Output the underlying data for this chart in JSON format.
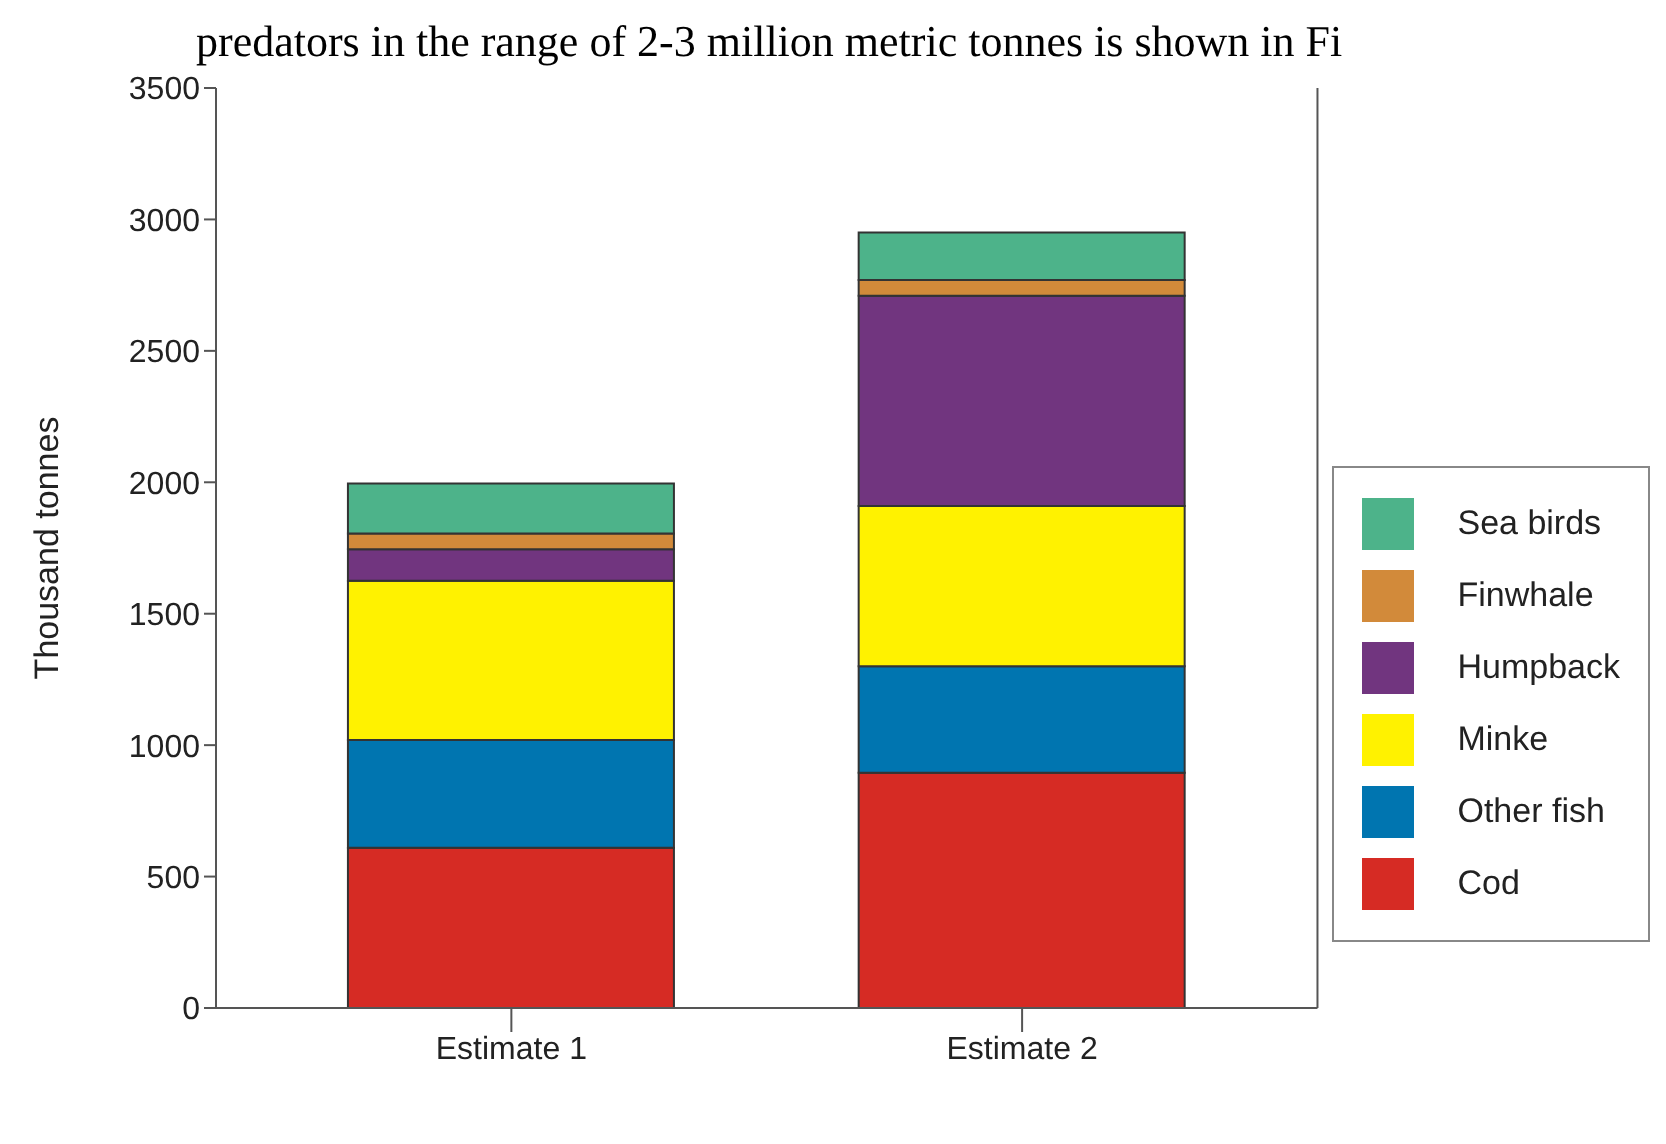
{
  "chart_data": {
    "type": "bar",
    "stacked": true,
    "annotations": [
      "predators in the range of 2-3 million metric tonnes is shown in Fi"
    ],
    "ylabel": "Thousand tonnes",
    "categories": [
      "Estimate 1",
      "Estimate 2"
    ],
    "ylim": [
      0,
      3500
    ],
    "yticks": [
      0,
      500,
      1000,
      1500,
      2000,
      2500,
      3000,
      3500
    ],
    "grid": false,
    "legend": "right",
    "series": [
      {
        "name": "Cod",
        "color": "#d62b24",
        "values": [
          610,
          895
        ]
      },
      {
        "name": "Other fish",
        "color": "#0075b0",
        "values": [
          410,
          405
        ]
      },
      {
        "name": "Minke",
        "color": "#fff200",
        "values": [
          605,
          610
        ]
      },
      {
        "name": "Humpback",
        "color": "#71357f",
        "values": [
          120,
          800
        ]
      },
      {
        "name": "Finwhale",
        "color": "#d28a3a",
        "values": [
          60,
          60
        ]
      },
      {
        "name": "Sea birds",
        "color": "#4db38a",
        "values": [
          190,
          180
        ]
      }
    ]
  }
}
